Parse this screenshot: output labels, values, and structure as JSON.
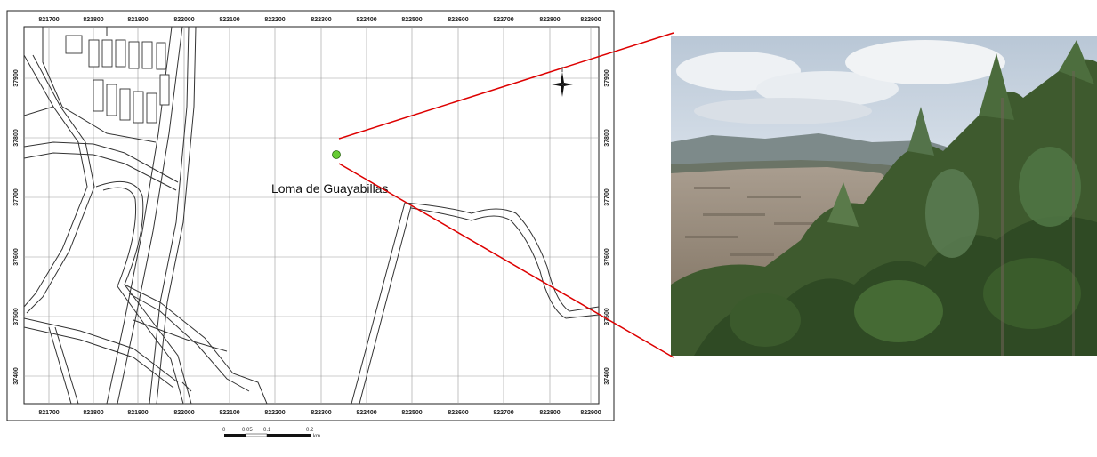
{
  "map": {
    "place_label": "Loma de Guayabillas",
    "x_ticks": [
      "821700",
      "821800",
      "821900",
      "822000",
      "822100",
      "822200",
      "822300",
      "822400",
      "822500",
      "822600",
      "822700",
      "822800",
      "822900"
    ],
    "y_ticks": [
      "37900",
      "37800",
      "37700",
      "37600",
      "37500",
      "37400"
    ],
    "marker_color": "#66cc33",
    "leader_color": "#dd0000",
    "north_arrow_icon": "compass-rose-icon",
    "scale_bar": {
      "labels": [
        "0",
        "0.05",
        "0.1",
        "0.2"
      ],
      "unit": "km"
    }
  },
  "photo": {
    "icon": "landscape-photo-icon"
  }
}
